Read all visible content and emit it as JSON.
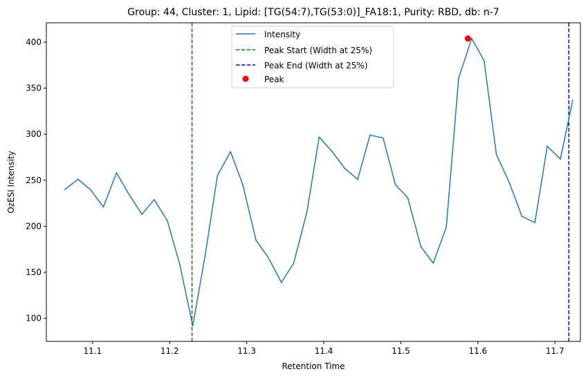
{
  "chart_data": {
    "type": "line",
    "title": "Group: 44, Cluster: 1, Lipid: [TG(54:7),TG(53:0)]_FA18:1, Purity: RBD, db: n-7",
    "xlabel": "Retention Time",
    "ylabel": "OzESI Intensity",
    "xlim": [
      11.04,
      11.733
    ],
    "ylim": [
      75,
      421
    ],
    "xticks": [
      11.1,
      11.2,
      11.3,
      11.4,
      11.5,
      11.6,
      11.7
    ],
    "xtick_labels": [
      "11.1",
      "11.2",
      "11.3",
      "11.4",
      "11.5",
      "11.6",
      "11.7"
    ],
    "yticks": [
      100,
      150,
      200,
      250,
      300,
      350,
      400
    ],
    "ytick_labels": [
      "100",
      "150",
      "200",
      "250",
      "300",
      "350",
      "400"
    ],
    "grid": false,
    "legend_placement": "upper-center",
    "series": [
      {
        "name": "Intensity",
        "color": "#1f77b4",
        "x": [
          11.064,
          11.081,
          11.097,
          11.114,
          11.131,
          11.147,
          11.164,
          11.18,
          11.197,
          11.213,
          11.23,
          11.246,
          11.262,
          11.279,
          11.295,
          11.312,
          11.328,
          11.345,
          11.361,
          11.378,
          11.394,
          11.411,
          11.427,
          11.444,
          11.46,
          11.477,
          11.493,
          11.509,
          11.526,
          11.542,
          11.559,
          11.575,
          11.592,
          11.608,
          11.624,
          11.641,
          11.657,
          11.674,
          11.69,
          11.707,
          11.723
        ],
        "y": [
          240,
          251,
          240,
          221,
          258,
          235,
          213,
          229,
          206,
          159,
          92,
          168,
          255,
          281,
          245,
          185,
          166,
          139,
          160,
          215,
          297,
          281,
          263,
          251,
          299,
          296,
          245,
          231,
          178,
          160,
          199,
          361,
          404,
          380,
          278,
          247,
          211,
          204,
          287,
          273,
          337
        ]
      }
    ],
    "vlines": [
      {
        "name": "Peak Start (Width at 25%)",
        "x": 11.229,
        "color": "#008000",
        "style": "dashed"
      },
      {
        "name": "Peak End (Width at 25%)",
        "x": 11.718,
        "color": "#0000ff",
        "style": "dashed"
      }
    ],
    "markers": [
      {
        "name": "Peak",
        "x": 11.587,
        "y": 404,
        "color": "#ff0000"
      }
    ]
  }
}
